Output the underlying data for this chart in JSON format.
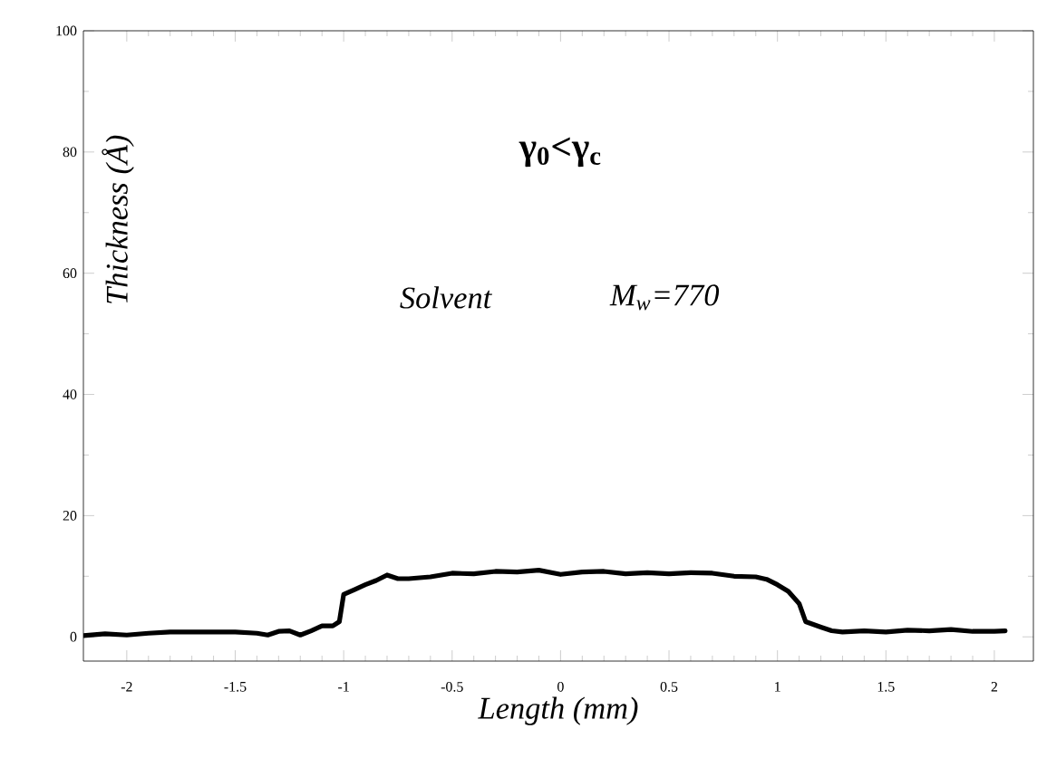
{
  "chart_data": {
    "type": "line",
    "xlabel": "Length (mm)",
    "ylabel": "Thickness (Å)",
    "annotations": [
      "γ$_{0}$<γ$_{c}$",
      "Solvent",
      "M$_{w}$=770"
    ],
    "x": [
      -2.2,
      -2.1,
      -2.0,
      -1.9,
      -1.8,
      -1.7,
      -1.6,
      -1.5,
      -1.4,
      -1.35,
      -1.3,
      -1.25,
      -1.2,
      -1.15,
      -1.1,
      -1.05,
      -1.02,
      -1.0,
      -0.95,
      -0.9,
      -0.85,
      -0.8,
      -0.75,
      -0.7,
      -0.6,
      -0.5,
      -0.4,
      -0.3,
      -0.2,
      -0.1,
      0,
      0.1,
      0.2,
      0.3,
      0.4,
      0.5,
      0.6,
      0.7,
      0.8,
      0.9,
      0.95,
      1.0,
      1.05,
      1.1,
      1.13,
      1.2,
      1.25,
      1.3,
      1.4,
      1.5,
      1.6,
      1.7,
      1.8,
      1.9,
      2.0,
      2.05
    ],
    "series": [
      {
        "color": "#000000",
        "values": [
          0.2,
          0.5,
          0.3,
          0.6,
          0.8,
          0.8,
          0.8,
          0.8,
          0.6,
          0.3,
          0.9,
          1.0,
          0.3,
          1.0,
          1.8,
          1.8,
          2.5,
          7.0,
          7.8,
          8.6,
          9.3,
          10.2,
          9.6,
          9.6,
          9.9,
          10.5,
          10.4,
          10.8,
          10.7,
          11.0,
          10.3,
          10.7,
          10.8,
          10.4,
          10.6,
          10.4,
          10.6,
          10.5,
          10.0,
          9.9,
          9.5,
          8.6,
          7.5,
          5.5,
          2.5,
          1.6,
          1.0,
          0.8,
          1.0,
          0.8,
          1.1,
          1.0,
          1.2,
          0.9,
          0.9,
          1.0
        ]
      }
    ],
    "xlim": [
      -2.2,
      2.18
    ],
    "ylim": [
      -4,
      100
    ],
    "xticks": [
      -2,
      -1.5,
      -1,
      -0.5,
      0,
      0.5,
      1,
      1.5,
      2
    ],
    "yticks": [
      0,
      20,
      40,
      60,
      80,
      100
    ],
    "marker": "none",
    "line_style": "solid"
  }
}
